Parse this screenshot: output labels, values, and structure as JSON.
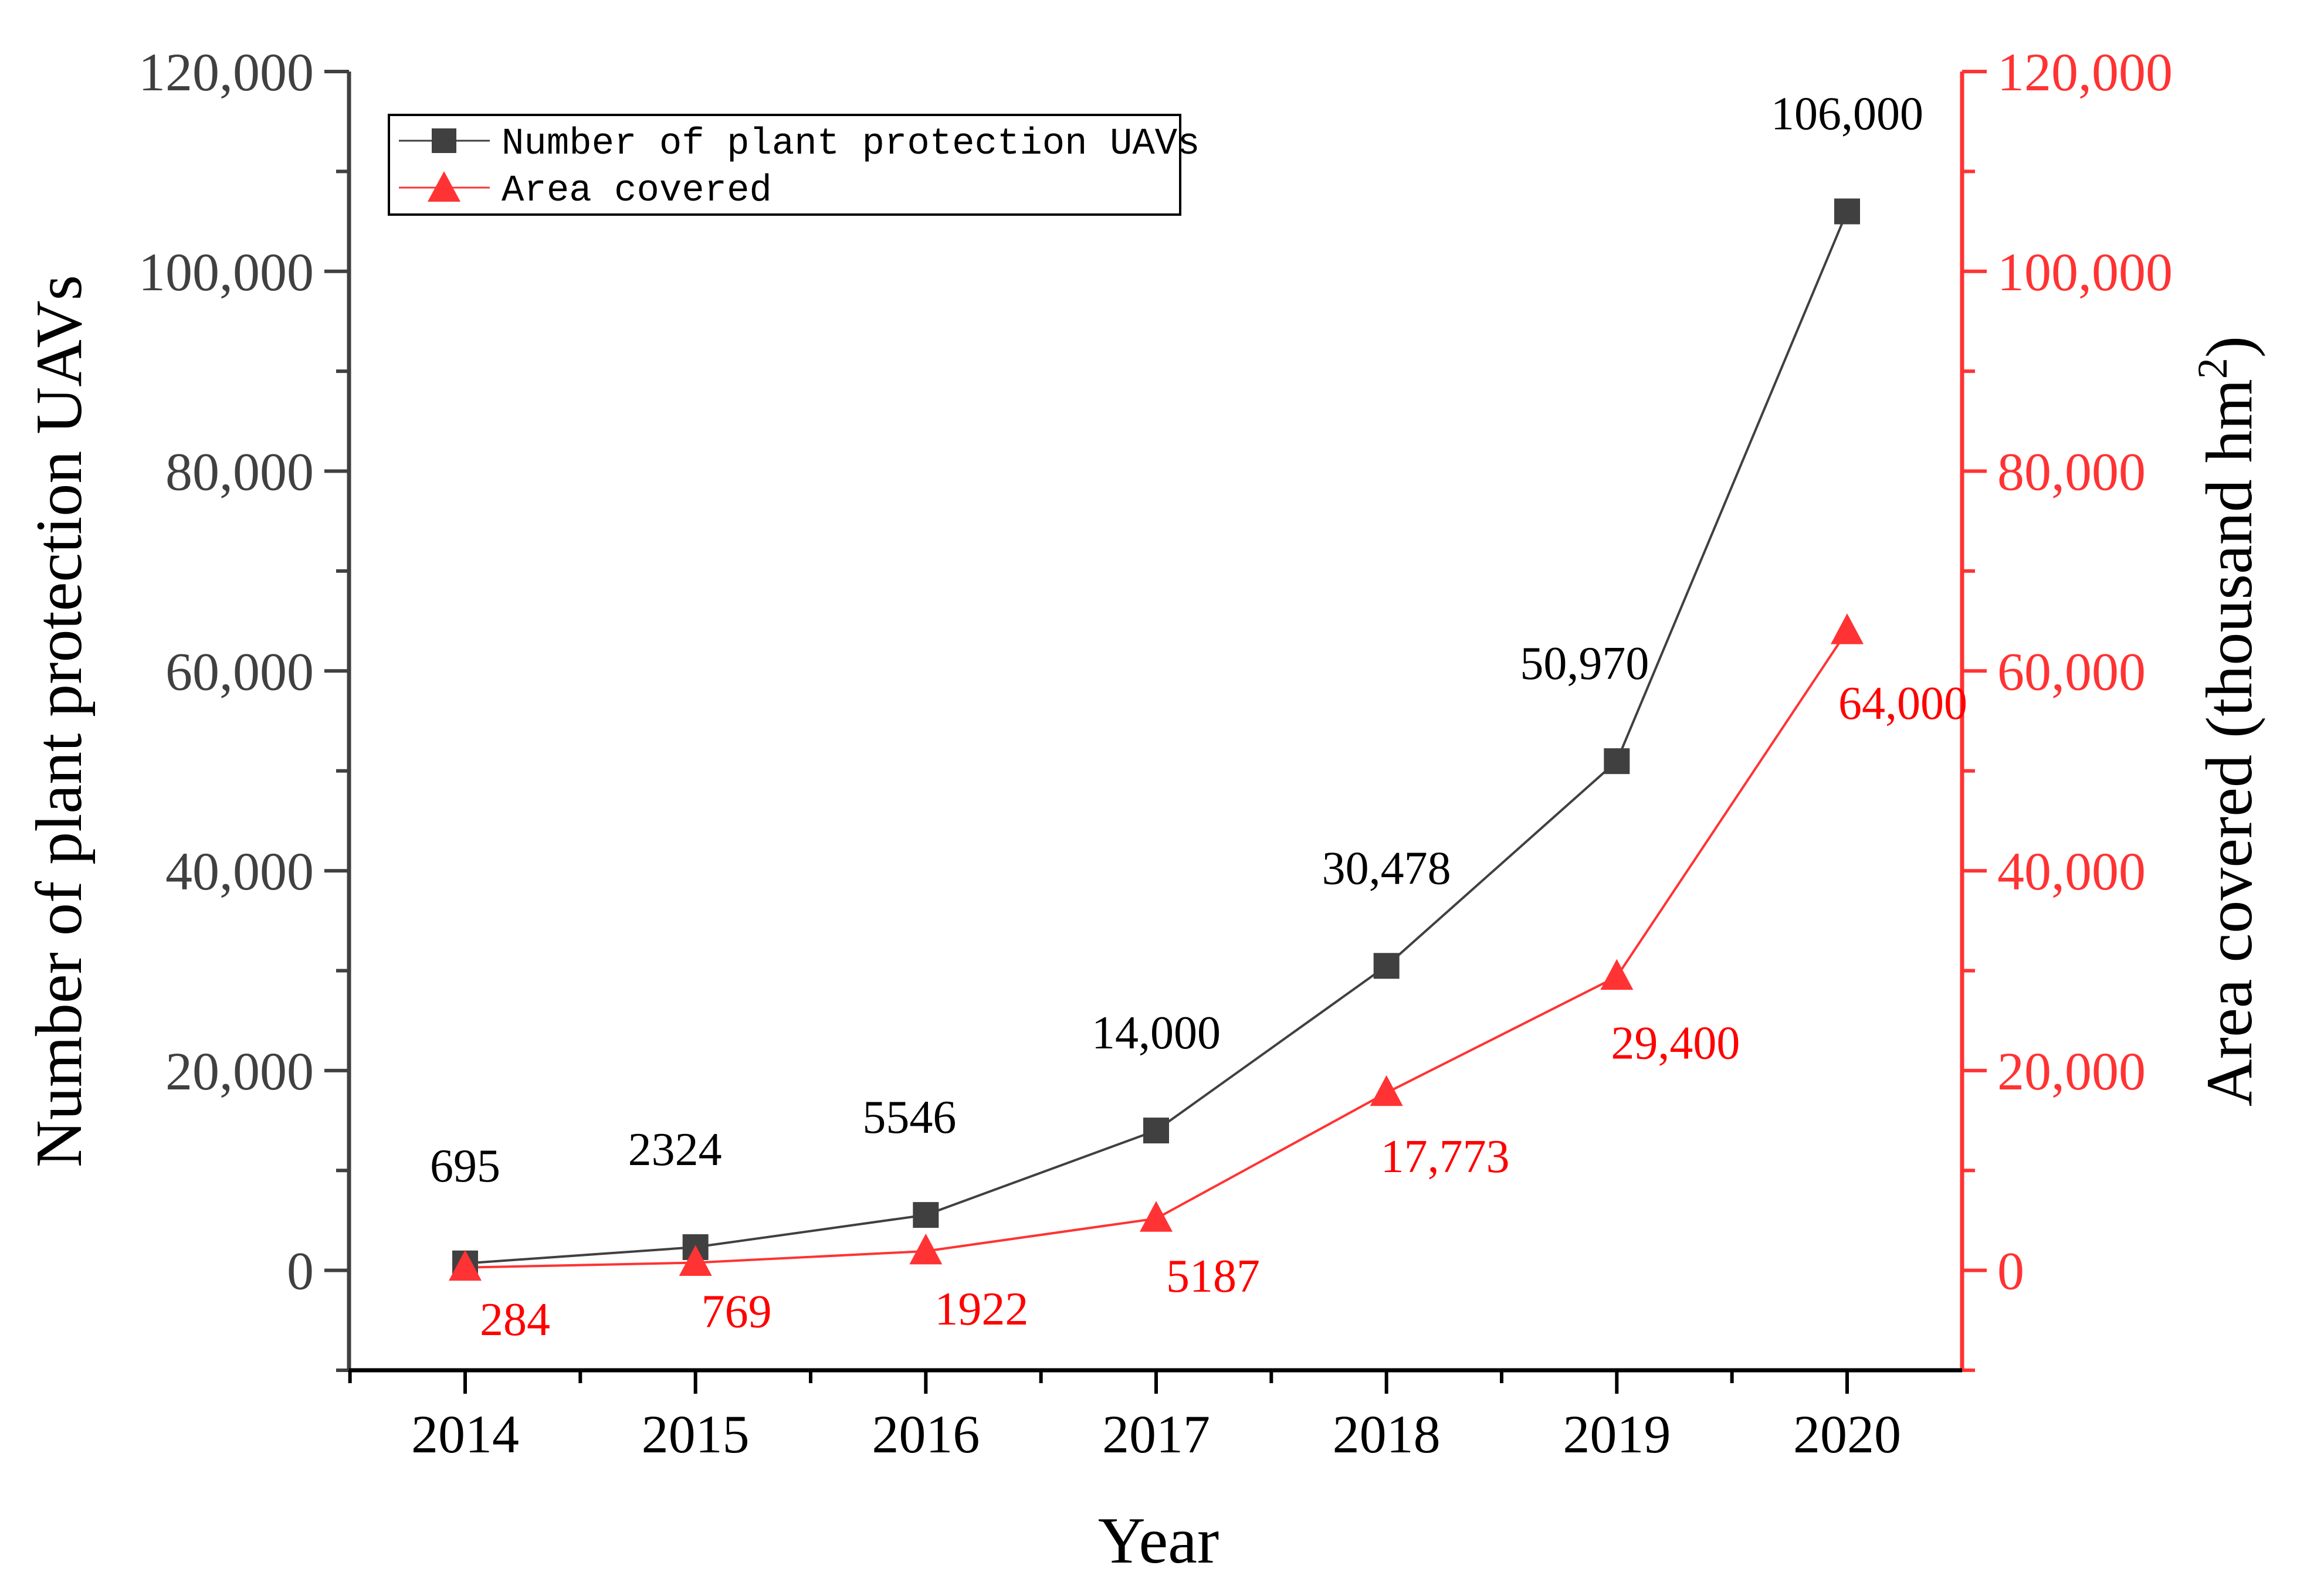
{
  "chart_data": {
    "type": "line",
    "title": "",
    "xlabel": "Year",
    "ylabel_left": "Number of plant protection UAVs",
    "ylabel_right": "Area covered (thousand hm",
    "ylabel_right_superscript": "2",
    "ylabel_right_close": ")",
    "categories": [
      "2014",
      "2015",
      "2016",
      "2017",
      "2018",
      "2019",
      "2020"
    ],
    "ylim_left": [
      -10000,
      120000
    ],
    "ylim_right": [
      -10000,
      120000
    ],
    "yticks_left": [
      0,
      20000,
      40000,
      60000,
      80000,
      100000,
      120000
    ],
    "ytick_labels_left": [
      "0",
      "20,000",
      "40,000",
      "60,000",
      "80,000",
      "100,000",
      "120,000"
    ],
    "yticks_right": [
      0,
      20000,
      40000,
      60000,
      80000,
      100000,
      120000
    ],
    "ytick_labels_right": [
      "0",
      "20,000",
      "40,000",
      "60,000",
      "80,000",
      "100,000",
      "120,000"
    ],
    "legend_position": "top-left",
    "series": [
      {
        "name": "Number of plant protection UAVs",
        "axis": "left",
        "marker": "square",
        "color": "#404040",
        "values": [
          695,
          2324,
          5546,
          14000,
          30478,
          50970,
          106000
        ],
        "labels": [
          "695",
          "2324",
          "5546",
          "14,000",
          "30,478",
          "50,970",
          "106,000"
        ]
      },
      {
        "name": "Area covered",
        "axis": "right",
        "marker": "triangle",
        "color": "#ff3333",
        "values": [
          284,
          769,
          1922,
          5187,
          17773,
          29400,
          64000
        ],
        "labels": [
          "284",
          "769",
          "1922",
          "5187",
          "17,773",
          "29,400",
          "64,000"
        ]
      }
    ]
  },
  "colors": {
    "axis_left": "#404040",
    "axis_right": "#ff3333",
    "label_black": "#000000",
    "label_red": "#ff0000",
    "tick_left_text": "#404040",
    "tick_right_text": "#ff3333"
  }
}
